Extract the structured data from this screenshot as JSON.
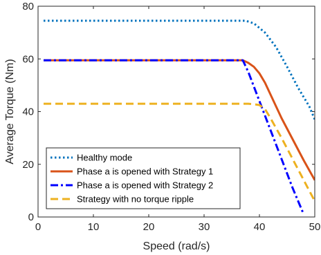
{
  "chart_data": {
    "type": "line",
    "title": "",
    "xlabel": "Speed (rad/s)",
    "ylabel": "Average Torque (Nm)",
    "xlim": [
      0,
      50
    ],
    "ylim": [
      0,
      80
    ],
    "xticks": [
      0,
      10,
      20,
      30,
      40,
      50
    ],
    "yticks": [
      0,
      20,
      40,
      60,
      80
    ],
    "grid": false,
    "legend_position": "bottom-left",
    "series": [
      {
        "name": "Healthy mode",
        "color": "#0072BD",
        "style": "dotted",
        "x": [
          1,
          5,
          10,
          20,
          30,
          37.5,
          39,
          41,
          43,
          45,
          47,
          49,
          50
        ],
        "y": [
          74.5,
          74.5,
          74.5,
          74.5,
          74.5,
          74.5,
          73.5,
          70,
          64.5,
          57,
          49,
          42,
          37
        ]
      },
      {
        "name": "Phase a is opened with Strategy 1",
        "color": "#D95319",
        "style": "solid",
        "x": [
          1,
          10,
          20,
          30,
          37,
          38,
          39,
          40,
          41,
          42,
          44,
          46,
          48,
          50
        ],
        "y": [
          59.5,
          59.5,
          59.5,
          59.5,
          59.5,
          58.5,
          57,
          54.5,
          51,
          46.5,
          37.5,
          29.5,
          21.5,
          14
        ]
      },
      {
        "name": "Phase a is opened with Strategy 2",
        "color": "#0000FF",
        "style": "dashdot",
        "x": [
          1,
          10,
          20,
          30,
          37,
          38,
          40,
          42,
          44,
          46,
          48
        ],
        "y": [
          59.5,
          59.5,
          59.5,
          59.5,
          59.5,
          55,
          44,
          33,
          22,
          11,
          1
        ]
      },
      {
        "name": "Strategy with no torque ripple",
        "color": "#EDB120",
        "style": "dashed",
        "x": [
          1,
          10,
          20,
          30,
          37,
          38,
          39,
          40,
          41,
          42,
          44,
          46,
          48,
          50
        ],
        "y": [
          43,
          43,
          43,
          43,
          43,
          43,
          42.8,
          42.5,
          41,
          37.5,
          30,
          22,
          14,
          6
        ]
      }
    ]
  }
}
